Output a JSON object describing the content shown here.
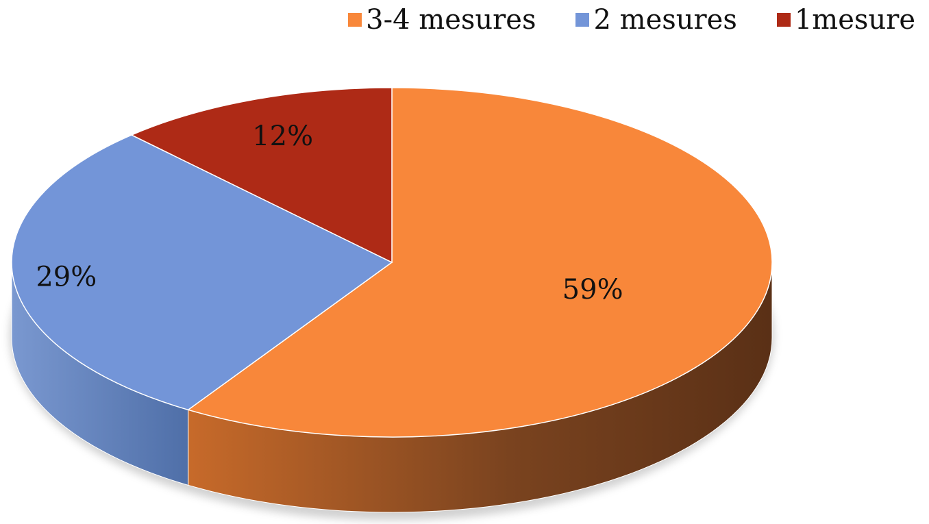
{
  "chart_data": {
    "type": "pie",
    "categories": [
      "3-4 mesures",
      "2 mesures",
      "1mesure"
    ],
    "values": [
      59,
      29,
      12
    ],
    "labels": [
      "59%",
      "29%",
      "12%"
    ],
    "colors": [
      "#F8873A",
      "#7395D8",
      "#AE2A16"
    ],
    "side_colors": [
      "#B15C20",
      "#6180BD",
      "#8A2010"
    ],
    "legend_placement": "top-right",
    "style": "3d"
  }
}
